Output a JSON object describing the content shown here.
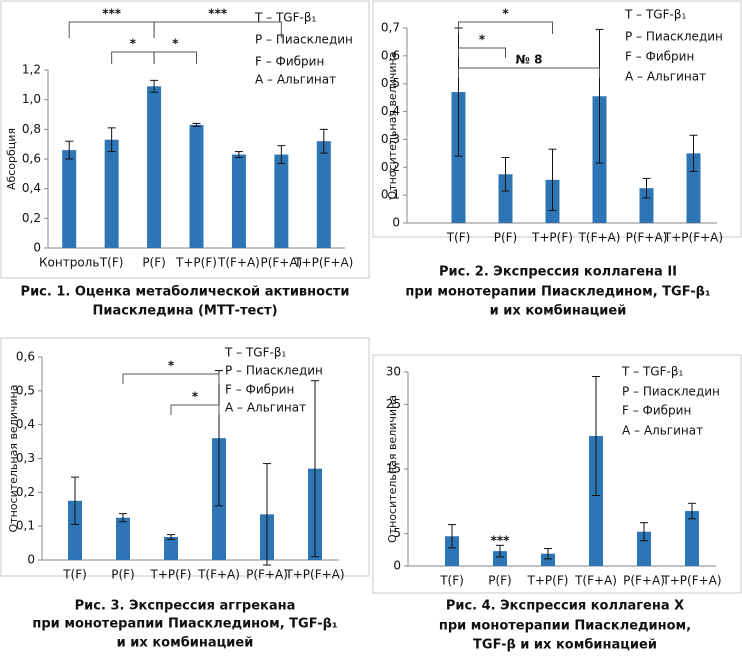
{
  "chart_data": [
    {
      "type": "bar",
      "ylabel": "Абсорбция",
      "categories": [
        "Контроль",
        "T(F)",
        "P(F)",
        "T+P(F)",
        "T(F+A)",
        "P(F+A)",
        "T+P(F+A)"
      ],
      "values": [
        0.66,
        0.73,
        1.09,
        0.83,
        0.63,
        0.63,
        0.72
      ],
      "errors": [
        0.06,
        0.08,
        0.04,
        0.01,
        0.02,
        0.06,
        0.08
      ],
      "color": "#2e75b6",
      "ylim": [
        0,
        1.2
      ],
      "yticks": [
        0,
        {
          "value": 0.2,
          "label": "0,2"
        },
        {
          "value": 0.4,
          "label": "0,4"
        },
        {
          "value": 0.6,
          "label": "0,6"
        },
        {
          "value": 0.8,
          "label": "0,8"
        },
        {
          "value": 1.0,
          "label": "1,0"
        },
        {
          "value": 1.2,
          "label": "1,2"
        }
      ],
      "annotations": [
        "***",
        "***",
        "*",
        "*"
      ],
      "legend": [
        "T – TGF-β₁",
        "P – Пиаскледин",
        "F – Фибрин",
        "A – Альгинат"
      ],
      "caption": [
        "Рис. 1. Оценка метаболической активности",
        "Пиаскледина (МТТ-тест)"
      ]
    },
    {
      "type": "bar",
      "ylabel": "Относительная величина",
      "categories": [
        "T(F)",
        "P(F)",
        "T+P(F)",
        "T(F+A)",
        "P(F+A)",
        "T+P(F+A)"
      ],
      "values": [
        0.47,
        0.175,
        0.155,
        0.455,
        0.125,
        0.25
      ],
      "errors": [
        0.23,
        0.06,
        0.11,
        0.24,
        0.035,
        0.065
      ],
      "color": "#2e75b6",
      "ylim": [
        0,
        0.7
      ],
      "yticks": [
        0,
        {
          "value": 0.1,
          "label": "0,1"
        },
        {
          "value": 0.2,
          "label": "0,2"
        },
        {
          "value": 0.3,
          "label": "0,3"
        },
        {
          "value": 0.4,
          "label": "0,4"
        },
        {
          "value": 0.5,
          "label": "0,5"
        },
        {
          "value": 0.6,
          "label": "0,6"
        },
        {
          "value": 0.7,
          "label": "0,7"
        }
      ],
      "annotations": [
        "*",
        "*",
        "№ 8"
      ],
      "legend": [
        "T – TGF-β₁",
        "P – Пиаскледин",
        "F – Фибрин",
        "A – Альгинат"
      ],
      "caption": [
        "Рис. 2. Экспрессия коллагена II",
        "при монотерапии Пиаскледином, TGF-β₁",
        "и их комбинацией"
      ]
    },
    {
      "type": "bar",
      "ylabel": "Относительная величина",
      "categories": [
        "T(F)",
        "P(F)",
        "T+P(F)",
        "T(F+A)",
        "P(F+A)",
        "T+P(F+A)"
      ],
      "values": [
        0.175,
        0.125,
        0.068,
        0.36,
        0.135,
        0.27
      ],
      "errors": [
        0.07,
        0.012,
        0.007,
        0.2,
        0.15,
        0.26
      ],
      "color": "#2e75b6",
      "ylim": [
        0,
        0.6
      ],
      "yticks": [
        0,
        {
          "value": 0.1,
          "label": "0,1"
        },
        {
          "value": 0.2,
          "label": "0,2"
        },
        {
          "value": 0.3,
          "label": "0,3"
        },
        {
          "value": 0.4,
          "label": "0,4"
        },
        {
          "value": 0.5,
          "label": "0,5"
        },
        {
          "value": 0.6,
          "label": "0,6"
        }
      ],
      "annotations": [
        "*",
        "*"
      ],
      "legend": [
        "T – TGF-β₁",
        "P – Пиаскледин",
        "F – Фибрин",
        "A – Альгинат"
      ],
      "caption": [
        "Рис. 3. Экспрессия аггрекана",
        "при монотерапии Пиаскледином, TGF-β₁",
        "и их комбинацией"
      ]
    },
    {
      "type": "bar",
      "ylabel": "Относительная величина",
      "categories": [
        "T(F)",
        "P(F)",
        "T+P(F)",
        "T(F+A)",
        "P(F+A)",
        "T+P(F+A)"
      ],
      "values": [
        4.6,
        2.3,
        1.9,
        20.1,
        5.3,
        8.5
      ],
      "errors": [
        1.8,
        0.9,
        0.8,
        9.2,
        1.4,
        1.2
      ],
      "color": "#2e75b6",
      "ylim": [
        0,
        30
      ],
      "yticks": [
        0,
        5,
        15,
        25,
        30
      ],
      "annotations": [
        "***"
      ],
      "legend": [
        "T – TGF-β₁",
        "P – Пиаскледин",
        "F – Фибрин",
        "A – Альгинат"
      ],
      "caption": [
        "Рис. 4. Экспрессия коллагена Х",
        "при монотерапии Пиаскледином,",
        "TGF-β и их комбинацией"
      ]
    }
  ]
}
